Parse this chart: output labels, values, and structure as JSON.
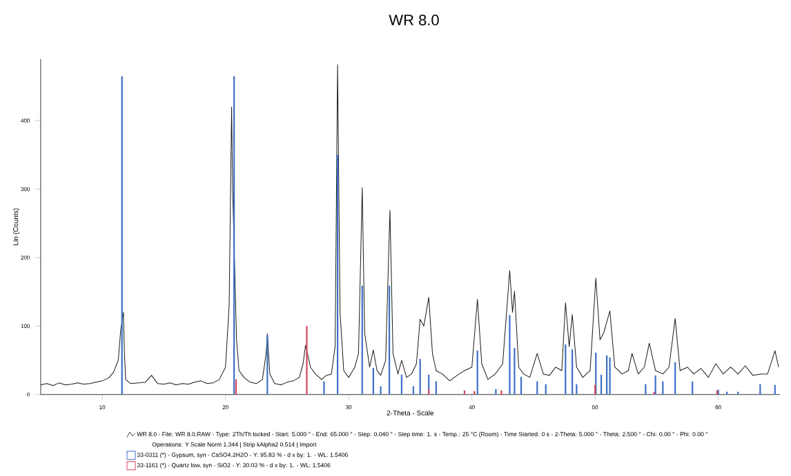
{
  "chart_data": {
    "type": "line",
    "title": "WR 8.0",
    "xlabel": "2-Theta - Scale",
    "ylabel": "Lin (Counts)",
    "xlim": [
      5,
      65
    ],
    "ylim": [
      0,
      490
    ],
    "xticks": [
      10,
      20,
      30,
      40,
      50,
      60
    ],
    "yticks": [
      0,
      100,
      200,
      300,
      400
    ],
    "legend": "bottom",
    "annotations": [
      "Operations: Y Scale Norm 1.344 | Strip kAlpha2 0.514 | Import"
    ],
    "series": [
      {
        "name": "WR 8.0 - File: WR 8.0.RAW - Type: 2Th/Th locked - Start: 5.000 ° - End: 65.000 ° - Step: 0.040 ° - Step time: 1. s - Temp.: 25 °C (Room) - Time Started: 0 s - 2-Theta: 5.000 ° - Theta: 2.500 ° - Chi: 0.00 ° - Phi: 0.00 °",
        "color": "#1a1a1a",
        "x": [
          5,
          5.5,
          6,
          6.5,
          7,
          7.5,
          8,
          8.5,
          9,
          9.5,
          10,
          10.5,
          10.9,
          11.3,
          11.5,
          11.72,
          11.8,
          11.9,
          12.3,
          13,
          13.5,
          14,
          14.5,
          15,
          15.5,
          16,
          16.5,
          17,
          17.5,
          18,
          18.5,
          19,
          19.5,
          20,
          20.3,
          20.5,
          20.58,
          20.9,
          21.1,
          21.5,
          22,
          22.5,
          23,
          23.3,
          23.4,
          23.6,
          24,
          24.5,
          25,
          25.5,
          26,
          26.3,
          26.5,
          26.9,
          27.3,
          27.8,
          28.2,
          28.6,
          28.9,
          29.1,
          29.3,
          29.6,
          30,
          30.5,
          30.8,
          31.1,
          31.3,
          31.7,
          32,
          32.3,
          32.6,
          33,
          33.35,
          33.6,
          34,
          34.3,
          34.7,
          35.1,
          35.5,
          35.8,
          36.1,
          36.5,
          36.8,
          37.1,
          37.6,
          38.2,
          38.8,
          39.4,
          40,
          40.45,
          40.8,
          41.3,
          41.9,
          42.5,
          43.07,
          43.3,
          43.46,
          43.8,
          44.2,
          44.7,
          45.3,
          45.8,
          46.3,
          46.8,
          47.3,
          47.6,
          47.9,
          48.15,
          48.5,
          49,
          49.6,
          50.06,
          50.4,
          50.7,
          51.2,
          51.6,
          52.2,
          52.7,
          53,
          53.5,
          54,
          54.4,
          54.9,
          55.5,
          56,
          56.5,
          56.9,
          57.5,
          58,
          58.6,
          59.2,
          59.8,
          60.4,
          61,
          61.6,
          62.2,
          62.8,
          63.4,
          64,
          64.6,
          64.9
        ],
        "values": [
          14,
          16,
          13,
          17,
          14,
          15,
          17,
          15,
          16,
          18,
          20,
          24,
          32,
          50,
          95,
          120,
          60,
          22,
          16,
          17,
          18,
          28,
          16,
          15,
          17,
          14,
          16,
          15,
          18,
          20,
          16,
          17,
          22,
          40,
          130,
          420,
          300,
          80,
          35,
          25,
          18,
          16,
          22,
          60,
          89,
          30,
          16,
          14,
          18,
          20,
          25,
          45,
          72,
          40,
          30,
          22,
          28,
          30,
          70,
          482,
          120,
          35,
          25,
          40,
          60,
          302,
          90,
          40,
          65,
          35,
          28,
          50,
          269,
          60,
          30,
          50,
          25,
          30,
          45,
          110,
          100,
          142,
          60,
          35,
          30,
          20,
          28,
          35,
          40,
          139,
          45,
          22,
          30,
          45,
          181,
          120,
          151,
          40,
          30,
          25,
          60,
          30,
          28,
          40,
          35,
          134,
          70,
          117,
          40,
          25,
          35,
          170,
          80,
          90,
          122,
          40,
          30,
          35,
          60,
          30,
          40,
          75,
          35,
          30,
          40,
          111,
          35,
          40,
          30,
          38,
          25,
          45,
          30,
          40,
          30,
          42,
          28,
          30,
          30,
          64,
          40
        ]
      },
      {
        "name": "33-0311 (*) - Gypsum, syn - CaSO4.2H2O - Y: 95.83 % - d x by: 1. - WL: 1.5406",
        "type": "bar",
        "color": "#3d6fc6",
        "x": [
          11.6,
          20.7,
          23.4,
          28.0,
          29.1,
          31.1,
          32.0,
          32.6,
          33.3,
          34.3,
          35.25,
          35.8,
          36.5,
          37.1,
          40.45,
          41.95,
          43.07,
          43.46,
          44.0,
          45.3,
          46.0,
          47.6,
          48.15,
          48.5,
          50.06,
          50.5,
          50.95,
          51.2,
          54.1,
          54.9,
          55.5,
          56.5,
          57.9,
          60.0,
          60.7,
          61.6,
          63.4,
          64.6
        ],
        "values": [
          465,
          465,
          87,
          19,
          350,
          159,
          39,
          12,
          159,
          29,
          12,
          52,
          29,
          19,
          64,
          8,
          116,
          68,
          26,
          19,
          15,
          73,
          66,
          15,
          61,
          29,
          57,
          54,
          15,
          28,
          19,
          47,
          19,
          7,
          4,
          4,
          15,
          14
        ]
      },
      {
        "name": "33-1161 (*) - Quartz low, syn - SiO2 - Y: 30.03 % - d x by: 1. - WL: 1.5406",
        "type": "bar",
        "color": "#d9435c",
        "x": [
          20.86,
          26.6,
          36.5,
          39.4,
          40.2,
          42.4,
          50.0,
          54.8,
          59.9
        ],
        "values": [
          22,
          100,
          8,
          6,
          5,
          6,
          14,
          4,
          6
        ]
      }
    ]
  }
}
